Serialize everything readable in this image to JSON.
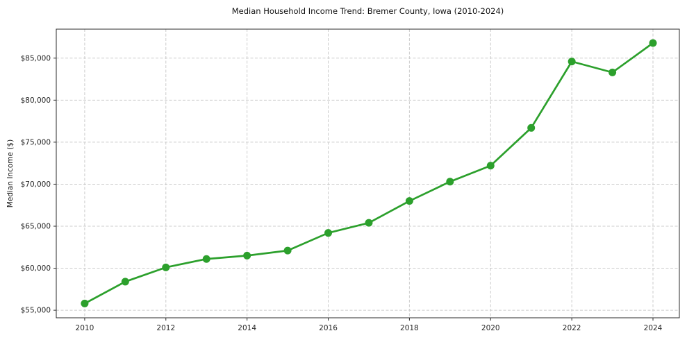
{
  "chart_data": {
    "type": "line",
    "title": "Median Household Income Trend: Bremer County, Iowa (2010-2024)",
    "xlabel": "",
    "ylabel": "Median Income ($)",
    "categories": [
      2010,
      2011,
      2012,
      2013,
      2014,
      2015,
      2016,
      2017,
      2018,
      2019,
      2020,
      2021,
      2022,
      2023,
      2024
    ],
    "values": [
      55800,
      58400,
      60100,
      61100,
      61500,
      62100,
      64200,
      65400,
      68000,
      70300,
      72200,
      76700,
      84600,
      83300,
      86800
    ],
    "series_name": "Median Household Income",
    "x_ticks": [
      2010,
      2012,
      2014,
      2016,
      2018,
      2020,
      2022,
      2024
    ],
    "x_tick_labels": [
      "2010",
      "2012",
      "2014",
      "2016",
      "2018",
      "2020",
      "2022",
      "2024"
    ],
    "y_ticks": [
      55000,
      60000,
      65000,
      70000,
      75000,
      80000,
      85000
    ],
    "y_tick_labels": [
      "$55,000",
      "$60,000",
      "$65,000",
      "$70,000",
      "$75,000",
      "$80,000",
      "$85,000"
    ],
    "xlim": [
      2009.3,
      2024.65
    ],
    "ylim": [
      54100,
      88450
    ],
    "grid": true,
    "grid_style": "dashed",
    "legend": "none",
    "line_color": "#2ca02c",
    "grid_color": "#cccccc",
    "marker": "circle"
  }
}
